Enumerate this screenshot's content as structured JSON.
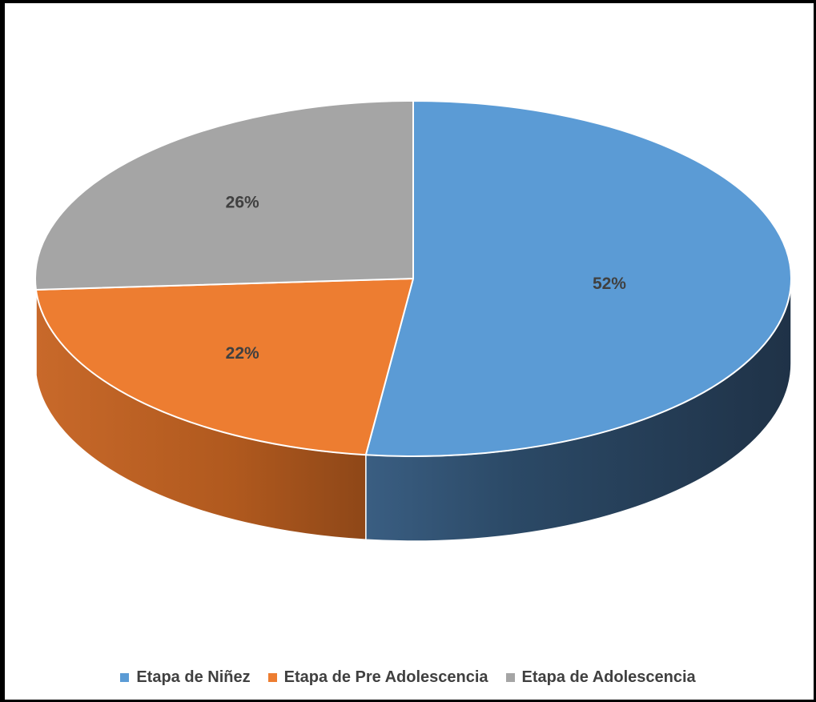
{
  "chart_data": {
    "type": "pie",
    "title": "",
    "categories": [
      "Etapa de Niñez",
      "Etapa de Pre Adolescencia",
      "Etapa de Adolescencia"
    ],
    "values": [
      52,
      22,
      26
    ],
    "labels": [
      "52%",
      "22%",
      "26%"
    ],
    "colors": [
      "#5B9BD5",
      "#ED7D31",
      "#A5A5A5"
    ],
    "side_colors": [
      "#25405A",
      "#9A4E1E",
      "#6F6F6F"
    ],
    "legend_position": "bottom",
    "three_d": true
  }
}
